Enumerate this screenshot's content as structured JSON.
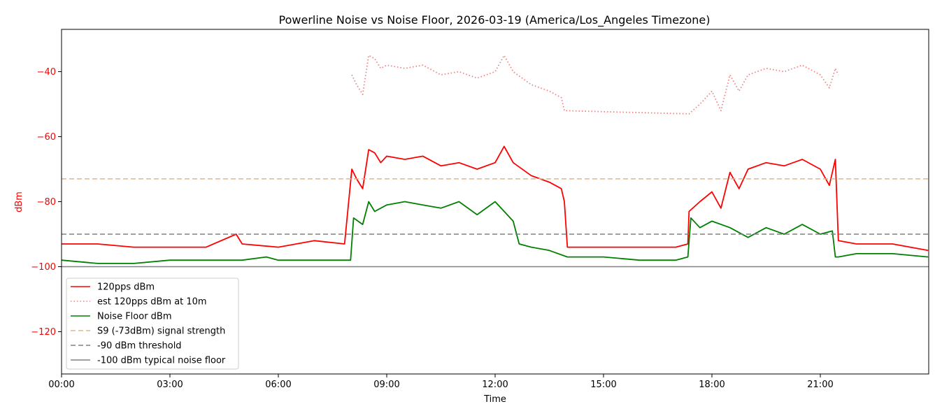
{
  "chart_data": {
    "type": "line",
    "title": "Powerline Noise vs Noise Floor, 2026-03-19 (America/Los_Angeles Timezone)",
    "xlabel": "Time",
    "ylabel": "dBm",
    "xlim": [
      "00:00",
      "24:00"
    ],
    "ylim": [
      -133,
      -27
    ],
    "xticks": [
      "00:00",
      "03:00",
      "06:00",
      "09:00",
      "12:00",
      "15:00",
      "18:00",
      "21:00"
    ],
    "yticks": [
      -40,
      -60,
      -80,
      -100,
      -120
    ],
    "ytick_labels": [
      "−40",
      "−60",
      "−80",
      "−100",
      "−120"
    ],
    "axis_label_color": "#ff0000",
    "grid": false,
    "legend_position": "lower-left",
    "series": [
      {
        "name": "120pps dBm",
        "color": "#ff0000",
        "style": "solid",
        "x": [
          "00:00",
          "01:00",
          "02:00",
          "03:00",
          "04:00",
          "04:50",
          "05:00",
          "06:00",
          "07:00",
          "07:50",
          "08:02",
          "08:10",
          "08:20",
          "08:30",
          "08:40",
          "08:50",
          "09:00",
          "09:30",
          "10:00",
          "10:30",
          "11:00",
          "11:30",
          "12:00",
          "12:15",
          "12:30",
          "13:00",
          "13:30",
          "13:50",
          "13:55",
          "14:00",
          "15:00",
          "16:00",
          "17:00",
          "17:20",
          "17:22",
          "17:40",
          "18:00",
          "18:15",
          "18:30",
          "18:45",
          "19:00",
          "19:30",
          "20:00",
          "20:30",
          "21:00",
          "21:15",
          "21:25",
          "21:30",
          "22:00",
          "23:00",
          "23:59"
        ],
        "y": [
          -93,
          -93,
          -94,
          -94,
          -94,
          -90,
          -93,
          -94,
          -92,
          -93,
          -70,
          -73,
          -76,
          -64,
          -65,
          -68,
          -66,
          -67,
          -66,
          -69,
          -68,
          -70,
          -68,
          -63,
          -68,
          -72,
          -74,
          -76,
          -80,
          -94,
          -94,
          -94,
          -94,
          -93,
          -83,
          -80,
          -77,
          -82,
          -71,
          -76,
          -70,
          -68,
          -69,
          -67,
          -70,
          -75,
          -67,
          -92,
          -93,
          -93,
          -95
        ]
      },
      {
        "name": "est 120pps dBm at 10m",
        "color": "#f08080",
        "style": "dotted",
        "x": [
          "08:02",
          "08:10",
          "08:20",
          "08:30",
          "08:40",
          "08:50",
          "09:00",
          "09:30",
          "10:00",
          "10:30",
          "11:00",
          "11:30",
          "12:00",
          "12:15",
          "12:30",
          "13:00",
          "13:30",
          "13:50",
          "13:55",
          "17:22",
          "17:40",
          "18:00",
          "18:15",
          "18:30",
          "18:45",
          "19:00",
          "19:30",
          "20:00",
          "20:30",
          "21:00",
          "21:15",
          "21:25",
          "21:30"
        ],
        "y": [
          -41,
          -44,
          -47,
          -35,
          -36,
          -39,
          -38,
          -39,
          -38,
          -41,
          -40,
          -42,
          -40,
          -35,
          -40,
          -44,
          -46,
          -48,
          -52,
          -53,
          -50,
          -46,
          -52,
          -41,
          -46,
          -41,
          -39,
          -40,
          -38,
          -41,
          -45,
          -39,
          -41
        ]
      },
      {
        "name": "Noise Floor dBm",
        "color": "#008000",
        "style": "solid",
        "x": [
          "00:00",
          "01:00",
          "02:00",
          "03:00",
          "04:00",
          "05:00",
          "05:40",
          "06:00",
          "07:00",
          "08:00",
          "08:05",
          "08:20",
          "08:30",
          "08:40",
          "09:00",
          "09:30",
          "10:00",
          "10:30",
          "11:00",
          "11:30",
          "12:00",
          "12:30",
          "12:40",
          "13:00",
          "13:30",
          "14:00",
          "15:00",
          "16:00",
          "17:00",
          "17:20",
          "17:25",
          "17:40",
          "18:00",
          "18:30",
          "19:00",
          "19:30",
          "20:00",
          "20:30",
          "21:00",
          "21:20",
          "21:25",
          "21:30",
          "22:00",
          "23:00",
          "23:59"
        ],
        "y": [
          -98,
          -99,
          -99,
          -98,
          -98,
          -98,
          -97,
          -98,
          -98,
          -98,
          -85,
          -87,
          -80,
          -83,
          -81,
          -80,
          -81,
          -82,
          -80,
          -84,
          -80,
          -86,
          -93,
          -94,
          -95,
          -97,
          -97,
          -98,
          -98,
          -97,
          -85,
          -88,
          -86,
          -88,
          -91,
          -88,
          -90,
          -87,
          -90,
          -89,
          -97,
          -97,
          -96,
          -96,
          -97
        ]
      },
      {
        "name": "S9 (-73dBm) signal strength",
        "color": "#deb887",
        "style": "dashed",
        "x": [
          "00:00",
          "24:00"
        ],
        "y": [
          -73,
          -73
        ]
      },
      {
        "name": "-90 dBm threshold",
        "color": "#808080",
        "style": "dashed",
        "x": [
          "00:00",
          "24:00"
        ],
        "y": [
          -90,
          -90
        ]
      },
      {
        "name": "-100 dBm typical noise floor",
        "color": "#808080",
        "style": "solid",
        "x": [
          "00:00",
          "24:00"
        ],
        "y": [
          -100,
          -100
        ]
      }
    ]
  }
}
